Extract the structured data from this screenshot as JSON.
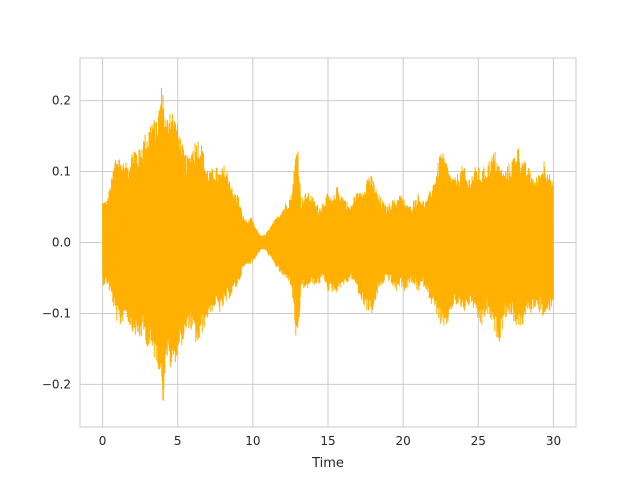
{
  "chart_data": {
    "type": "line",
    "title": "",
    "xlabel": "Time",
    "ylabel": "",
    "xlim": [
      -1.5,
      31.5
    ],
    "ylim": [
      -0.26,
      0.26
    ],
    "grid": true,
    "x_ticks": [
      0,
      5,
      10,
      15,
      20,
      25,
      30
    ],
    "x_tick_labels": [
      "0",
      "5",
      "10",
      "15",
      "20",
      "25",
      "30"
    ],
    "y_ticks": [
      -0.2,
      -0.1,
      0.0,
      0.1,
      0.2
    ],
    "y_tick_labels": [
      "−0.2",
      "−0.1",
      "0.0",
      "0.1",
      "0.2"
    ],
    "colors": {
      "waveform": "#ffb000",
      "grid": "#cccccc",
      "axes_edge": "#cccccc",
      "text": "#262626"
    },
    "series": [
      {
        "style": "waveform",
        "x_start": 0,
        "x_end": 30,
        "envelope_x": [
          0,
          0.3,
          0.6,
          0.9,
          1.2,
          1.5,
          1.8,
          2.1,
          2.4,
          2.7,
          3.0,
          3.3,
          3.6,
          3.9,
          4.0,
          4.2,
          4.5,
          4.8,
          5.1,
          5.4,
          5.7,
          6.0,
          6.3,
          6.6,
          6.9,
          7.2,
          7.5,
          7.8,
          8.1,
          8.4,
          8.7,
          9.0,
          9.3,
          9.6,
          9.9,
          10.2,
          10.5,
          10.8,
          11.1,
          11.4,
          11.7,
          12.0,
          12.3,
          12.6,
          12.9,
          13.0,
          13.2,
          13.5,
          13.8,
          14.1,
          14.4,
          14.7,
          15.0,
          15.3,
          15.6,
          15.9,
          16.2,
          16.5,
          16.8,
          17.1,
          17.4,
          17.7,
          18.0,
          18.3,
          18.6,
          18.9,
          19.2,
          19.5,
          19.8,
          20.1,
          20.4,
          20.7,
          21.0,
          21.3,
          21.6,
          21.9,
          22.2,
          22.5,
          22.8,
          23.1,
          23.4,
          23.7,
          24.0,
          24.3,
          24.6,
          24.9,
          25.2,
          25.5,
          25.8,
          26.1,
          26.4,
          26.7,
          27.0,
          27.3,
          27.6,
          27.9,
          28.2,
          28.5,
          28.8,
          29.1,
          29.4,
          29.7,
          30.0
        ],
        "envelope_max": [
          0.06,
          0.06,
          0.09,
          0.13,
          0.12,
          0.11,
          0.12,
          0.14,
          0.13,
          0.15,
          0.16,
          0.18,
          0.17,
          0.22,
          0.23,
          0.17,
          0.2,
          0.18,
          0.16,
          0.13,
          0.12,
          0.14,
          0.15,
          0.14,
          0.11,
          0.1,
          0.11,
          0.1,
          0.11,
          0.1,
          0.07,
          0.07,
          0.04,
          0.03,
          0.035,
          0.02,
          0.01,
          0.01,
          0.02,
          0.03,
          0.04,
          0.05,
          0.06,
          0.07,
          0.14,
          0.14,
          0.06,
          0.07,
          0.07,
          0.06,
          0.05,
          0.06,
          0.07,
          0.06,
          0.08,
          0.07,
          0.06,
          0.05,
          0.07,
          0.07,
          0.08,
          0.1,
          0.09,
          0.07,
          0.06,
          0.05,
          0.06,
          0.06,
          0.07,
          0.06,
          0.05,
          0.06,
          0.07,
          0.06,
          0.06,
          0.08,
          0.1,
          0.13,
          0.12,
          0.1,
          0.09,
          0.1,
          0.11,
          0.09,
          0.1,
          0.11,
          0.1,
          0.11,
          0.12,
          0.13,
          0.11,
          0.1,
          0.11,
          0.12,
          0.14,
          0.12,
          0.11,
          0.1,
          0.09,
          0.1,
          0.12,
          0.1,
          0.08
        ],
        "envelope_min": [
          -0.06,
          -0.06,
          -0.08,
          -0.11,
          -0.12,
          -0.1,
          -0.12,
          -0.13,
          -0.14,
          -0.13,
          -0.15,
          -0.16,
          -0.17,
          -0.19,
          -0.235,
          -0.16,
          -0.18,
          -0.17,
          -0.15,
          -0.14,
          -0.12,
          -0.13,
          -0.15,
          -0.13,
          -0.11,
          -0.1,
          -0.09,
          -0.1,
          -0.09,
          -0.08,
          -0.07,
          -0.06,
          -0.04,
          -0.03,
          -0.03,
          -0.02,
          -0.01,
          -0.01,
          -0.02,
          -0.03,
          -0.04,
          -0.05,
          -0.05,
          -0.07,
          -0.15,
          -0.15,
          -0.06,
          -0.07,
          -0.06,
          -0.06,
          -0.06,
          -0.05,
          -0.07,
          -0.07,
          -0.07,
          -0.06,
          -0.06,
          -0.05,
          -0.06,
          -0.08,
          -0.09,
          -0.1,
          -0.1,
          -0.07,
          -0.06,
          -0.05,
          -0.06,
          -0.07,
          -0.06,
          -0.07,
          -0.06,
          -0.06,
          -0.07,
          -0.06,
          -0.07,
          -0.09,
          -0.1,
          -0.12,
          -0.13,
          -0.1,
          -0.09,
          -0.09,
          -0.1,
          -0.09,
          -0.09,
          -0.11,
          -0.12,
          -0.1,
          -0.11,
          -0.13,
          -0.14,
          -0.11,
          -0.1,
          -0.11,
          -0.12,
          -0.12,
          -0.1,
          -0.1,
          -0.09,
          -0.1,
          -0.11,
          -0.1,
          -0.08
        ]
      }
    ]
  }
}
